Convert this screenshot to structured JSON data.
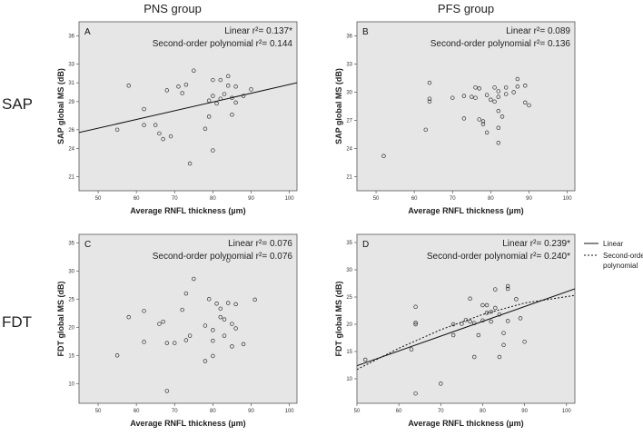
{
  "headers": {
    "col1": "PNS group",
    "col2": "PFS group",
    "row1": "SAP",
    "row2": "FDT"
  },
  "legend": {
    "linear": "Linear",
    "poly_line1": "Second-order",
    "poly_line2": "polynomial"
  },
  "colors": {
    "panel_bg": "#e6e6e6",
    "point": "#333333",
    "line": "#111111"
  },
  "chart_data": [
    {
      "type": "scatter",
      "panel": "A",
      "xlabel": "Average RNFL thickness (µm)",
      "ylabel": "SAP global MS (dB)",
      "xlim": [
        45,
        102
      ],
      "ylim": [
        19.5,
        37.5
      ],
      "xticks": [
        "50",
        "60",
        "70",
        "80",
        "90",
        "100"
      ],
      "yticks": [
        "21",
        "24",
        "26",
        "29",
        "31",
        "33",
        "36"
      ],
      "stats": [
        {
          "label": "Linear r²= 0.137*"
        },
        {
          "label": "Second-order polynomial r²= 0.144"
        }
      ],
      "fit": {
        "linear": [
          [
            45,
            25.7
          ],
          [
            102,
            31.0
          ]
        ]
      },
      "points": [
        [
          55,
          26.0
        ],
        [
          58,
          30.7
        ],
        [
          62,
          28.2
        ],
        [
          62,
          26.5
        ],
        [
          65,
          26.5
        ],
        [
          66,
          25.6
        ],
        [
          67,
          25.0
        ],
        [
          68,
          30.2
        ],
        [
          69,
          25.3
        ],
        [
          71,
          30.6
        ],
        [
          72,
          29.9
        ],
        [
          73,
          30.8
        ],
        [
          74,
          22.4
        ],
        [
          75,
          32.3
        ],
        [
          78,
          26.1
        ],
        [
          79,
          27.4
        ],
        [
          79,
          29.1
        ],
        [
          80,
          31.3
        ],
        [
          80,
          29.6
        ],
        [
          80,
          23.8
        ],
        [
          81,
          28.8
        ],
        [
          82,
          31.3
        ],
        [
          82,
          29.3
        ],
        [
          83,
          29.8
        ],
        [
          84,
          30.7
        ],
        [
          84,
          31.7
        ],
        [
          85,
          27.6
        ],
        [
          85,
          29.4
        ],
        [
          86,
          30.6
        ],
        [
          86,
          28.9
        ],
        [
          88,
          29.6
        ],
        [
          90,
          30.3
        ]
      ]
    },
    {
      "type": "scatter",
      "panel": "B",
      "xlabel": "Average RNFL thickness (µm)",
      "ylabel": "SAP global MS (dB)",
      "xlim": [
        45,
        102
      ],
      "ylim": [
        19.5,
        37.5
      ],
      "xticks": [
        "50",
        "60",
        "70",
        "80",
        "90",
        "100"
      ],
      "yticks": [
        "21",
        "24",
        "27",
        "30",
        "33",
        "36"
      ],
      "stats": [
        {
          "label": "Linear r²= 0.089"
        },
        {
          "label": "Second-order polynomial r²= 0.136"
        }
      ],
      "fit": {},
      "points": [
        [
          52,
          23.2
        ],
        [
          63,
          26.0
        ],
        [
          64,
          31.0
        ],
        [
          64,
          29.3
        ],
        [
          64,
          29.0
        ],
        [
          70,
          29.4
        ],
        [
          73,
          29.6
        ],
        [
          73,
          27.2
        ],
        [
          75,
          29.5
        ],
        [
          76,
          29.4
        ],
        [
          76,
          30.5
        ],
        [
          77,
          27.1
        ],
        [
          77,
          30.4
        ],
        [
          78,
          26.6
        ],
        [
          78,
          26.9
        ],
        [
          79,
          25.7
        ],
        [
          79,
          29.7
        ],
        [
          80,
          29.2
        ],
        [
          81,
          29.0
        ],
        [
          81,
          30.5
        ],
        [
          82,
          28.0
        ],
        [
          82,
          29.5
        ],
        [
          82,
          30.1
        ],
        [
          82,
          26.2
        ],
        [
          82,
          24.6
        ],
        [
          83,
          27.4
        ],
        [
          84,
          30.5
        ],
        [
          84,
          29.8
        ],
        [
          86,
          30.0
        ],
        [
          87,
          31.4
        ],
        [
          87,
          30.6
        ],
        [
          89,
          30.7
        ],
        [
          89,
          28.9
        ],
        [
          90,
          28.6
        ]
      ]
    },
    {
      "type": "scatter",
      "panel": "C",
      "xlabel": "Average RNFL thickness (µm)",
      "ylabel": "FDT global MS (dB)",
      "xlim": [
        45,
        102
      ],
      "ylim": [
        6.5,
        36.5
      ],
      "xticks": [
        "50",
        "60",
        "70",
        "80",
        "90",
        "100"
      ],
      "yticks": [
        "10",
        "15",
        "20",
        "25",
        "30",
        "35"
      ],
      "stats": [
        {
          "label": "Linear r²= 0.076"
        },
        {
          "label": "Second-order polynomial r²= 0.076"
        }
      ],
      "fit": {},
      "points": [
        [
          55,
          15.0
        ],
        [
          58,
          21.8
        ],
        [
          62,
          22.9
        ],
        [
          62,
          17.4
        ],
        [
          66,
          20.6
        ],
        [
          67,
          21.0
        ],
        [
          68,
          17.2
        ],
        [
          68,
          8.7
        ],
        [
          70,
          17.2
        ],
        [
          72,
          23.1
        ],
        [
          73,
          17.7
        ],
        [
          73,
          26.0
        ],
        [
          74,
          18.5
        ],
        [
          75,
          28.6
        ],
        [
          78,
          20.3
        ],
        [
          78,
          14.0
        ],
        [
          79,
          25.0
        ],
        [
          80,
          19.5
        ],
        [
          80,
          14.9
        ],
        [
          80,
          17.6
        ],
        [
          81,
          24.2
        ],
        [
          82,
          21.8
        ],
        [
          82,
          23.3
        ],
        [
          83,
          18.5
        ],
        [
          83,
          21.4
        ],
        [
          84,
          24.3
        ],
        [
          84,
          31.9
        ],
        [
          85,
          20.6
        ],
        [
          85,
          16.6
        ],
        [
          86,
          24.1
        ],
        [
          86,
          19.8
        ],
        [
          88,
          17.0
        ],
        [
          91,
          24.9
        ]
      ]
    },
    {
      "type": "scatter",
      "panel": "D",
      "xlabel": "Average RNFL thickness (µm)",
      "ylabel": "FDT global MS (dB)",
      "xlim": [
        50,
        102
      ],
      "ylim": [
        5.5,
        36.5
      ],
      "xticks": [
        "50",
        "60",
        "70",
        "80",
        "90",
        "100"
      ],
      "yticks": [
        "10",
        "15",
        "20",
        "25",
        "30",
        "35"
      ],
      "stats": [
        {
          "label": "Linear r²= 0.239*"
        },
        {
          "label": "Second-order polynomial r²= 0.240*"
        }
      ],
      "fit": {
        "linear": [
          [
            50,
            12.4
          ],
          [
            102,
            26.5
          ]
        ],
        "polynomial": [
          [
            50,
            11.7
          ],
          [
            60,
            15.6
          ],
          [
            70,
            19.0
          ],
          [
            80,
            21.8
          ],
          [
            90,
            23.9
          ],
          [
            102,
            25.3
          ]
        ]
      },
      "points": [
        [
          52,
          13.5
        ],
        [
          63,
          15.4
        ],
        [
          64,
          20.0
        ],
        [
          64,
          20.3
        ],
        [
          64,
          23.2
        ],
        [
          64,
          7.3
        ],
        [
          70,
          9.1
        ],
        [
          73,
          20.0
        ],
        [
          73,
          18.0
        ],
        [
          75,
          20.1
        ],
        [
          76,
          20.8
        ],
        [
          77,
          20.5
        ],
        [
          77,
          24.7
        ],
        [
          78,
          20.2
        ],
        [
          78,
          14.0
        ],
        [
          79,
          18.0
        ],
        [
          80,
          23.5
        ],
        [
          80,
          20.7
        ],
        [
          81,
          22.1
        ],
        [
          81,
          23.5
        ],
        [
          82,
          22.3
        ],
        [
          82,
          20.5
        ],
        [
          83,
          23.0
        ],
        [
          83,
          26.4
        ],
        [
          84,
          14.0
        ],
        [
          84,
          21.8
        ],
        [
          85,
          18.4
        ],
        [
          85,
          16.2
        ],
        [
          86,
          27.0
        ],
        [
          86,
          26.5
        ],
        [
          86,
          20.6
        ],
        [
          88,
          24.6
        ],
        [
          89,
          21.1
        ],
        [
          90,
          16.8
        ]
      ]
    }
  ]
}
